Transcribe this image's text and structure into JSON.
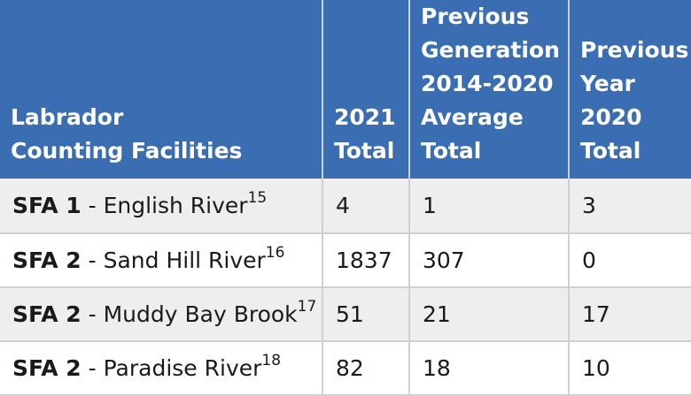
{
  "table": {
    "headers": [
      {
        "lines": [
          "Labrador",
          "Counting Facilities"
        ]
      },
      {
        "lines": [
          "2021",
          "Total"
        ]
      },
      {
        "lines": [
          "Previous",
          "Generation",
          "2014-2020",
          "Average",
          "Total"
        ]
      },
      {
        "lines": [
          "Previous",
          "Year",
          "2020",
          "Total"
        ]
      }
    ],
    "rows": [
      {
        "sfa": "SFA 1",
        "separator": " - ",
        "river": "English River",
        "footnote": "15",
        "total_2021": "4",
        "prev_gen_avg": "1",
        "prev_year": "3"
      },
      {
        "sfa": "SFA 2",
        "separator": " - ",
        "river": "Sand Hill River",
        "footnote": "16",
        "total_2021": "1837",
        "prev_gen_avg": "307",
        "prev_year": "0"
      },
      {
        "sfa": "SFA 2",
        "separator": " - ",
        "river": "Muddy Bay Brook",
        "footnote": "17",
        "total_2021": "51",
        "prev_gen_avg": "21",
        "prev_year": "17"
      },
      {
        "sfa": "SFA 2",
        "separator": " - ",
        "river": "Paradise River",
        "footnote": "18",
        "total_2021": "82",
        "prev_gen_avg": "18",
        "prev_year": "10"
      }
    ]
  },
  "colors": {
    "header_bg": "#3b6db2",
    "header_text": "#ffffff",
    "row_alt_bg": "#eeeeee"
  }
}
